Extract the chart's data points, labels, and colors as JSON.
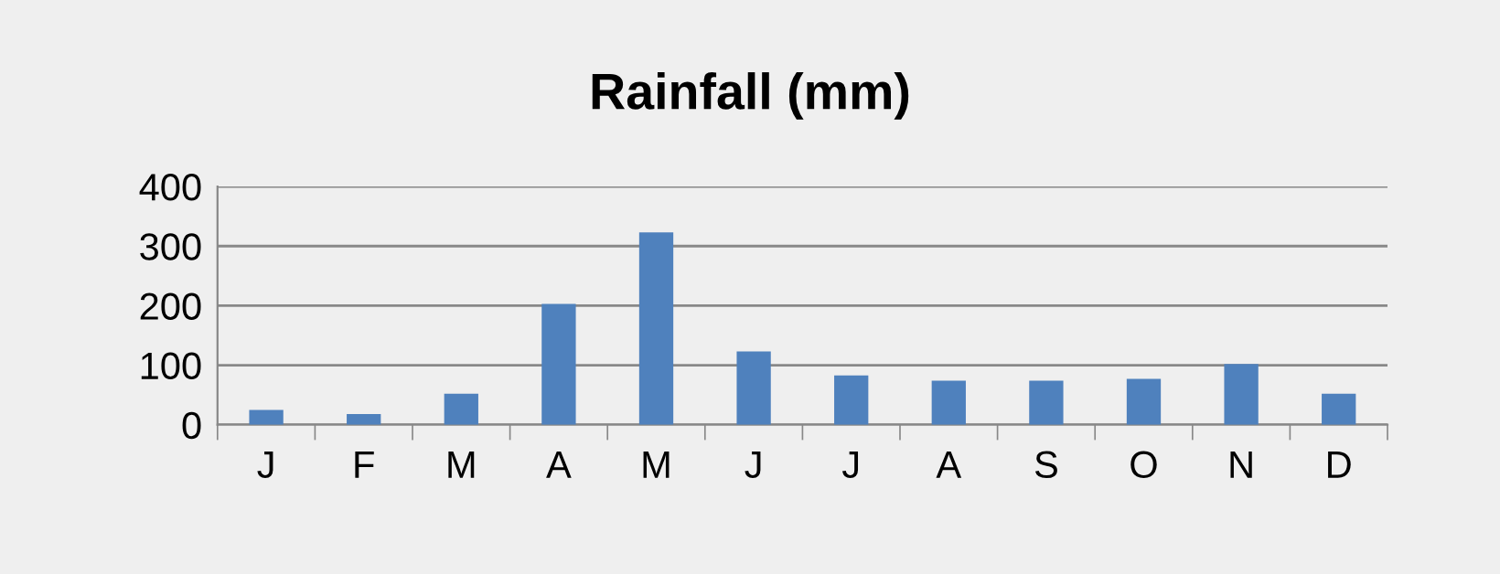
{
  "chart_data": {
    "type": "bar",
    "title": "Rainfall (mm)",
    "categories": [
      "J",
      "F",
      "M",
      "A",
      "M",
      "J",
      "J",
      "A",
      "S",
      "O",
      "N",
      "D"
    ],
    "values": [
      25,
      18,
      52,
      203,
      323,
      123,
      83,
      74,
      74,
      77,
      102,
      52
    ],
    "color": "#4f81bd",
    "ylim": [
      0,
      400
    ],
    "yticks": [
      0,
      100,
      200,
      300,
      400
    ],
    "grid": "y",
    "legend": false
  }
}
